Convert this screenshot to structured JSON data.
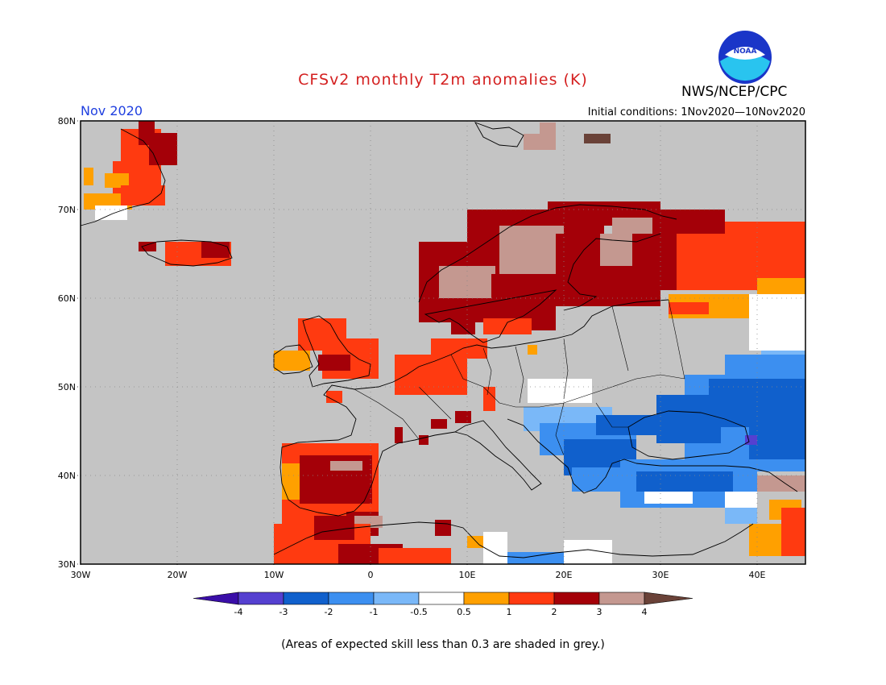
{
  "title": "CFSv2 monthly T2m anomalies (K)",
  "organization": "NWS/NCEP/CPC",
  "logo_text": "NOAA",
  "valid_month": "Nov 2020",
  "initial_conditions": "Initial conditions: 1Nov2020—10Nov2020",
  "footnote": "(Areas of expected skill less than 0.3 are shaded in grey.)",
  "colors": {
    "skill_grey": "#c4c4c4",
    "neg4": "#3a0ea8",
    "neg3": "#5540d0",
    "neg2": "#1060cc",
    "neg1": "#3c8ff0",
    "neg05": "#7ab8f8",
    "neutral": "#ffffff",
    "pos05": "#ffa000",
    "pos1": "#ff3a10",
    "pos2": "#a40008",
    "pos3": "#c49890",
    "pos4": "#6a4238"
  },
  "map": {
    "lon_range": [
      -30,
      45
    ],
    "lat_range": [
      30,
      80
    ],
    "lon_ticks": [
      "30W",
      "20W",
      "10W",
      "0",
      "10E",
      "20E",
      "30E",
      "40E"
    ],
    "lat_ticks": [
      "30N",
      "40N",
      "50N",
      "60N",
      "70N",
      "80N"
    ]
  },
  "colorbar": {
    "labels": [
      "-4",
      "-3",
      "-2",
      "-1",
      "-0.5",
      "0.5",
      "1",
      "2",
      "3",
      "4"
    ]
  }
}
